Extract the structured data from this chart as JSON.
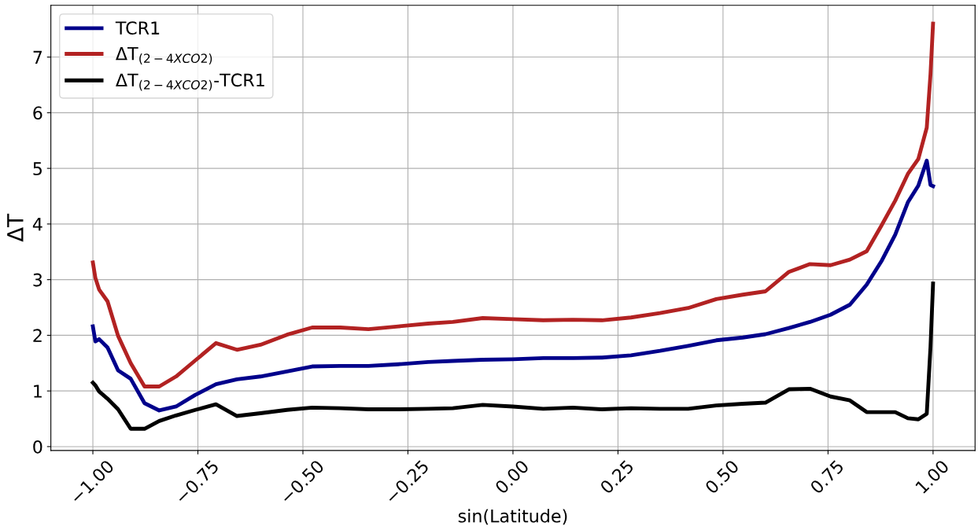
{
  "chart_data": {
    "type": "line",
    "xlabel": "sin(Latitude)",
    "ylabel": "ΔT",
    "x": [
      -1.0,
      -0.994,
      -0.985,
      -0.965,
      -0.94,
      -0.91,
      -0.877,
      -0.842,
      -0.802,
      -0.756,
      -0.707,
      -0.657,
      -0.601,
      -0.538,
      -0.478,
      -0.411,
      -0.344,
      -0.273,
      -0.202,
      -0.143,
      -0.072,
      0.0,
      0.072,
      0.143,
      0.212,
      0.281,
      0.35,
      0.417,
      0.484,
      0.547,
      0.601,
      0.657,
      0.707,
      0.756,
      0.802,
      0.842,
      0.877,
      0.91,
      0.94,
      0.965,
      0.985,
      0.994,
      1.0
    ],
    "series": [
      {
        "name": "TCR1",
        "color": "#00008b",
        "values": [
          2.16,
          1.89,
          1.93,
          1.78,
          1.37,
          1.22,
          0.78,
          0.65,
          0.72,
          0.93,
          1.12,
          1.21,
          1.26,
          1.35,
          1.44,
          1.45,
          1.45,
          1.48,
          1.52,
          1.54,
          1.56,
          1.57,
          1.59,
          1.59,
          1.6,
          1.64,
          1.72,
          1.81,
          1.91,
          1.96,
          2.02,
          2.13,
          2.24,
          2.37,
          2.55,
          2.91,
          3.33,
          3.81,
          4.39,
          4.69,
          5.14,
          4.7,
          4.68
        ]
      },
      {
        "name": "ΔT$_{(2−4XCO2)}$",
        "color": "#b22222",
        "values": [
          3.31,
          3.03,
          2.82,
          2.61,
          1.99,
          1.5,
          1.08,
          1.08,
          1.26,
          1.55,
          1.86,
          1.74,
          1.83,
          2.01,
          2.14,
          2.14,
          2.11,
          2.16,
          2.21,
          2.24,
          2.31,
          2.29,
          2.27,
          2.28,
          2.27,
          2.32,
          2.4,
          2.49,
          2.65,
          2.73,
          2.79,
          3.14,
          3.28,
          3.26,
          3.36,
          3.51,
          3.97,
          4.42,
          4.9,
          5.17,
          5.73,
          6.7,
          7.6
        ]
      },
      {
        "name": "ΔT$_{(2−4XCO2)}$-TCR1",
        "color": "#000000",
        "values": [
          1.15,
          1.1,
          0.99,
          0.86,
          0.67,
          0.32,
          0.32,
          0.46,
          0.56,
          0.66,
          0.76,
          0.55,
          0.6,
          0.66,
          0.7,
          0.69,
          0.67,
          0.67,
          0.68,
          0.69,
          0.75,
          0.72,
          0.68,
          0.7,
          0.67,
          0.69,
          0.68,
          0.68,
          0.74,
          0.77,
          0.79,
          1.03,
          1.04,
          0.9,
          0.83,
          0.62,
          0.62,
          0.62,
          0.51,
          0.49,
          0.59,
          1.8,
          2.93
        ]
      }
    ],
    "xlim": [
      -1.1,
      1.1
    ],
    "ylim": [
      -0.07,
      7.93
    ],
    "xticks": [
      {
        "value": -1.0,
        "label": "−1.00"
      },
      {
        "value": -0.75,
        "label": "−0.75"
      },
      {
        "value": -0.5,
        "label": "−0.50"
      },
      {
        "value": -0.25,
        "label": "−0.25"
      },
      {
        "value": 0.0,
        "label": "0.00"
      },
      {
        "value": 0.25,
        "label": "0.25"
      },
      {
        "value": 0.5,
        "label": "0.50"
      },
      {
        "value": 0.75,
        "label": "0.75"
      },
      {
        "value": 1.0,
        "label": "1.00"
      }
    ],
    "yticks": [
      0,
      1,
      2,
      3,
      4,
      5,
      6,
      7
    ],
    "grid": true,
    "legend": "top left",
    "marker": "none",
    "line_style": "solid"
  }
}
